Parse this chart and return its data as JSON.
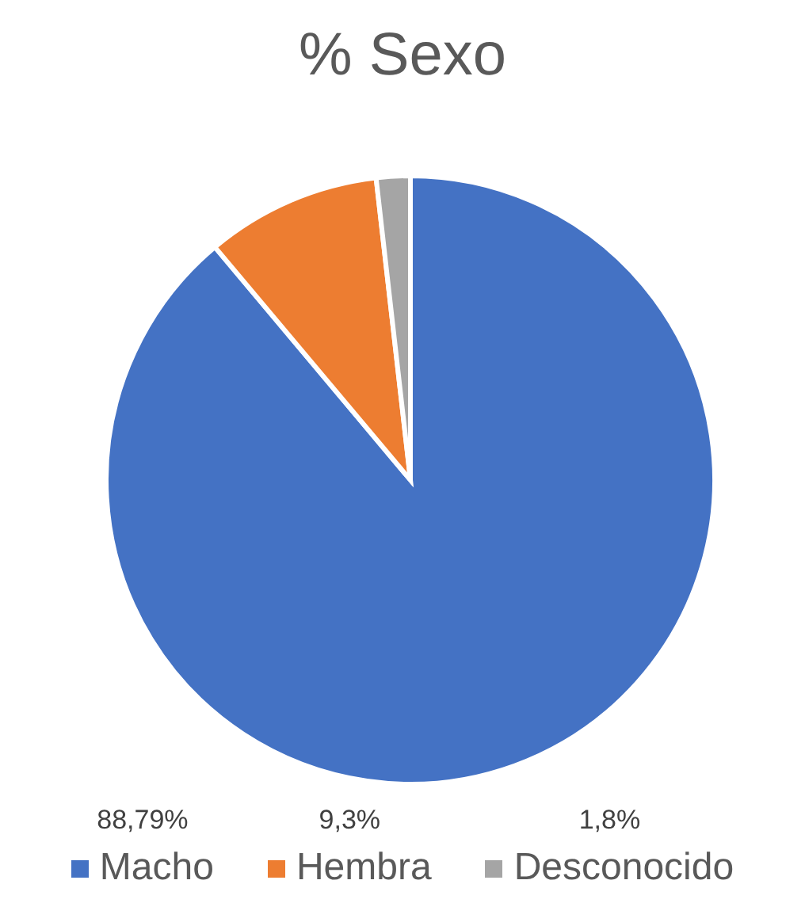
{
  "chart_data": {
    "type": "pie",
    "title": "% Sexo",
    "categories": [
      "Macho",
      "Hembra",
      "Desconocido"
    ],
    "values": [
      88.79,
      9.3,
      1.8
    ],
    "colors": [
      "#4472c4",
      "#ed7d31",
      "#a5a5a5"
    ],
    "value_labels": [
      "88,79%",
      "9,3%",
      "1,8%"
    ],
    "legend": "bottom"
  }
}
